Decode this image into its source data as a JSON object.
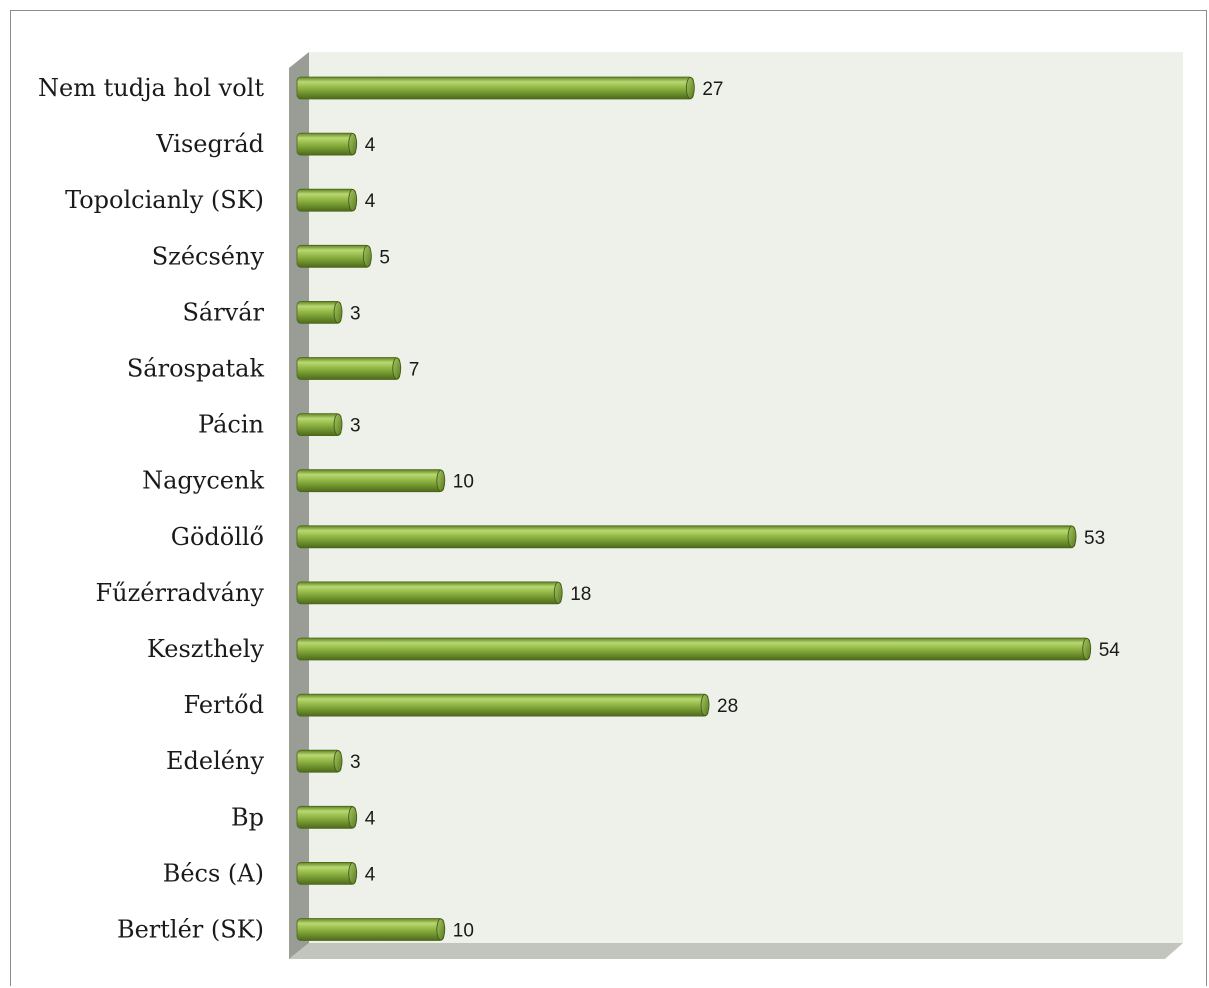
{
  "chart_data": {
    "type": "bar",
    "orientation": "horizontal",
    "categories": [
      "Nem tudja hol volt",
      "Visegrád",
      "Topolcianly (SK)",
      "Szécsény",
      "Sárvár",
      "Sárospatak",
      "Pácin",
      "Nagycenk",
      "Gödöllő",
      "Fűzérradvány",
      "Keszthely",
      "Fertőd",
      "Edelény",
      "Bp",
      "Bécs (A)",
      "Bertlér  (SK)"
    ],
    "values": [
      27,
      4,
      4,
      5,
      3,
      7,
      3,
      10,
      53,
      18,
      54,
      28,
      3,
      4,
      4,
      10
    ],
    "title": "",
    "xlabel": "",
    "ylabel": "",
    "xlim": [
      0,
      54
    ],
    "grid": false,
    "legend": "none",
    "data_labels": true,
    "colors": {
      "bar_light": "#b4d46a",
      "bar_mid": "#86ad3a",
      "bar_dark": "#4e6e1c",
      "wall_back": "#eef1ea",
      "wall_side": "#9a9c96",
      "floor": "#c2c5bd"
    }
  }
}
